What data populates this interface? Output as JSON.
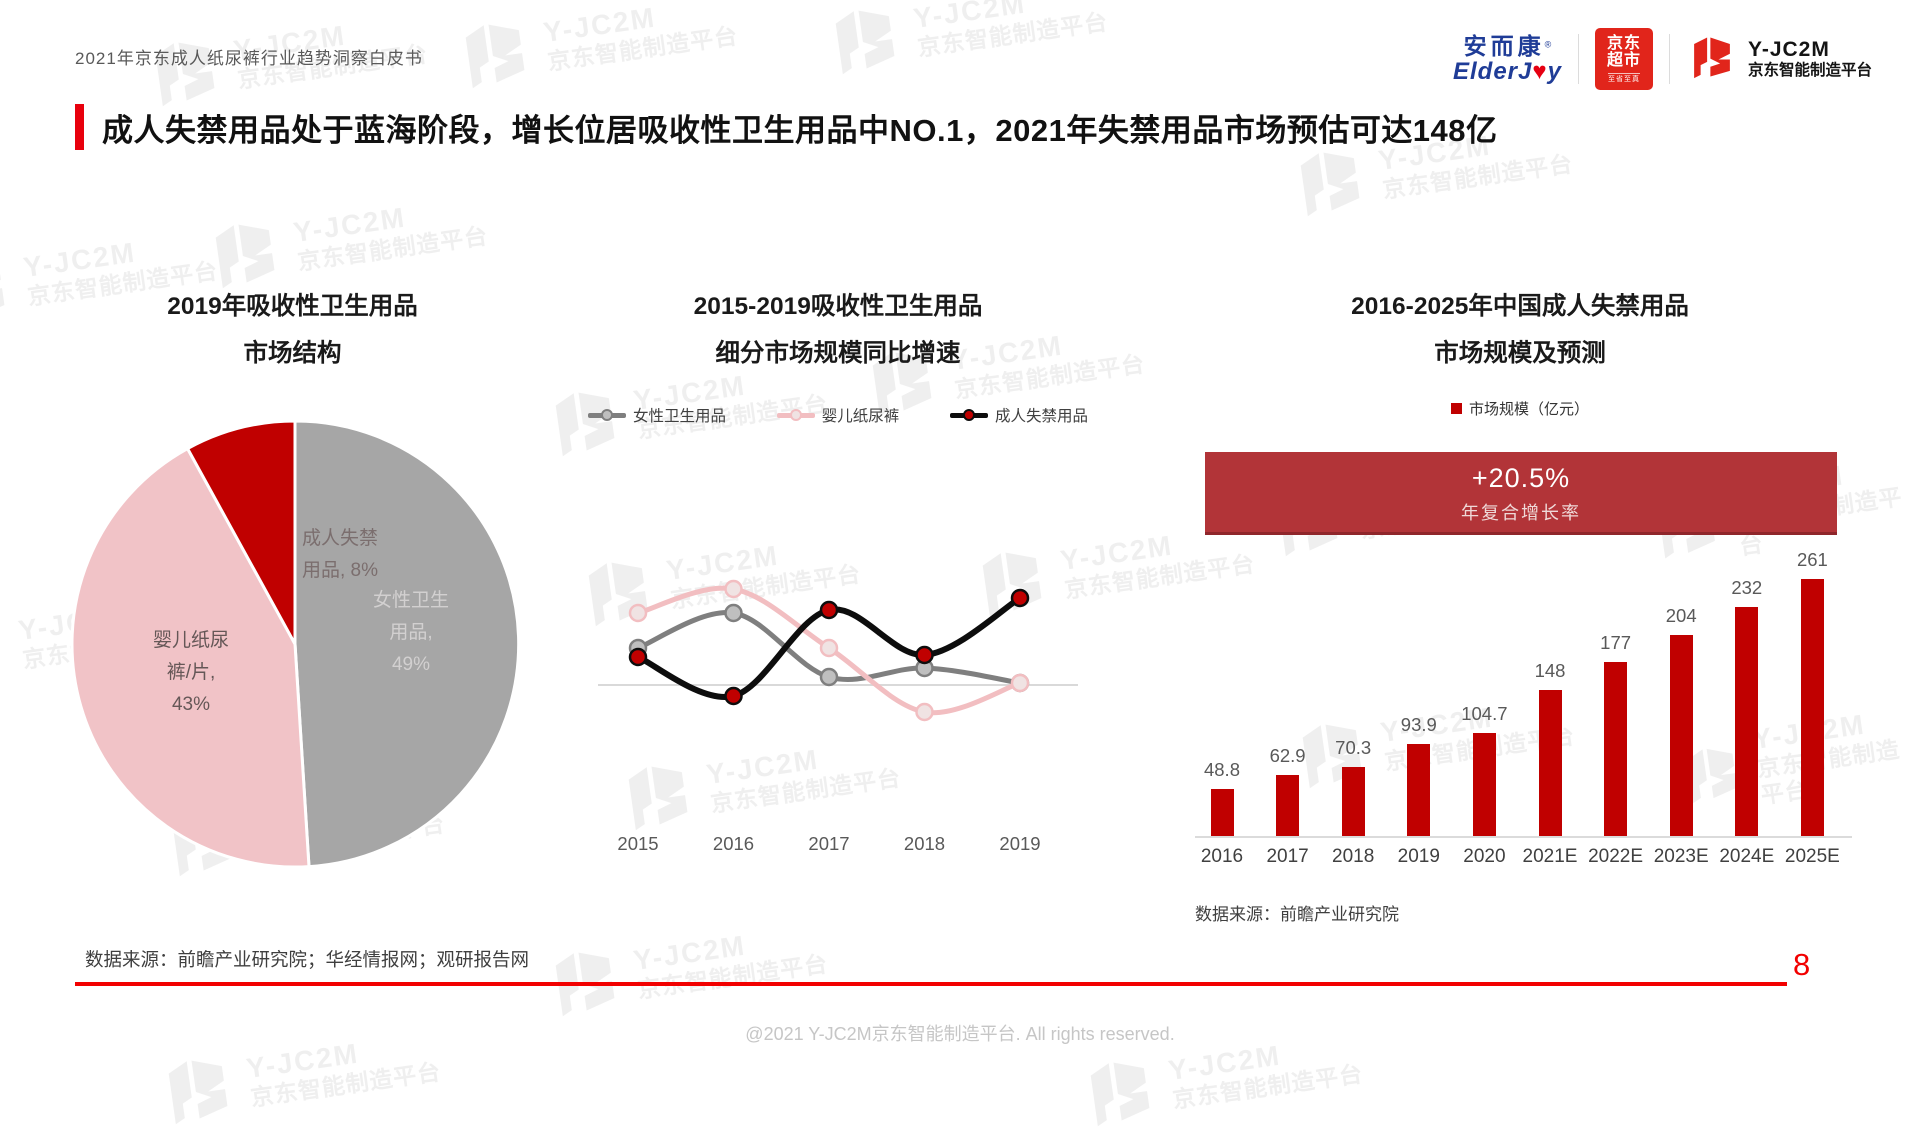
{
  "header": {
    "doc_title": "2021年京东成人纸尿裤行业趋势洞察白皮书",
    "logos": {
      "elderjoy": {
        "cn": "安而康",
        "reg": "®",
        "en_pre": "ElderJ",
        "en_heart": "♥",
        "en_post": "y"
      },
      "jd_market": {
        "line1": "京东",
        "line2": "超市",
        "slogan": "至省至真"
      },
      "yjc2m": {
        "line1": "Y-JC2M",
        "line2": "京东智能制造平台"
      }
    }
  },
  "headline": "成人失禁用品处于蓝海阶段，增长位居吸收性卫生用品中NO.1，2021年失禁用品市场预估可达148亿",
  "watermark": {
    "line1": "Y-JC2M",
    "line2": "京东智能制造平台"
  },
  "footer": {
    "source_left": "数据来源：前瞻产业研究院；华经情报网；观研报告网",
    "copyright": "@2021 Y-JC2M京东智能制造平台. All rights reserved.",
    "page_number": "8"
  },
  "chart_data": [
    {
      "type": "pie",
      "title_line1": "2019年吸收性卫生用品",
      "title_line2": "市场结构",
      "slices": [
        {
          "label": "女性卫生用品",
          "value": 49,
          "color": "#A6A6A6"
        },
        {
          "label": "婴儿纸尿裤/片",
          "value": 43,
          "color": "#F1C3C7"
        },
        {
          "label": "成人失禁用品",
          "value": 8,
          "color": "#C00000"
        }
      ],
      "slice_labels": {
        "gray": {
          "l1": "女性卫生",
          "l2": "用品,",
          "l3": "49%"
        },
        "pink": {
          "l1": "婴儿纸尿",
          "l2": "裤/片,",
          "l3": "43%"
        },
        "red": {
          "l1": "成人失禁",
          "l2": "用品, 8%"
        }
      }
    },
    {
      "type": "line",
      "title_line1": "2015-2019吸收性卫生用品",
      "title_line2": "细分市场规模同比增速",
      "x": [
        "2015",
        "2016",
        "2017",
        "2018",
        "2019"
      ],
      "series": [
        {
          "name": "女性卫生用品",
          "color": "#7F7F7F",
          "marker_fill": "#BFBFBF",
          "values": [
            3.7,
            7.2,
            0.8,
            1.7,
            0.2
          ]
        },
        {
          "name": "婴儿纸尿裤",
          "color": "#F2BEC1",
          "marker_fill": "#F0E3E3",
          "values": [
            7.2,
            9.6,
            3.7,
            -2.7,
            0.2
          ]
        },
        {
          "name": "成人失禁用品",
          "color": "#0D0D0D",
          "marker_fill": "#C00000",
          "values": [
            2.8,
            -1.1,
            7.5,
            3.0,
            8.7
          ]
        }
      ],
      "value_note": "values estimated from plot (growth rate, no numeric axis shown)"
    },
    {
      "type": "bar",
      "title_line1": "2016-2025年中国成人失禁用品",
      "title_line2": "市场规模及预测",
      "legend": "市场规模（亿元）",
      "banner_line1": "+20.5%",
      "banner_line2": "年复合增长率",
      "categories": [
        "2016",
        "2017",
        "2018",
        "2019",
        "2020",
        "2021E",
        "2022E",
        "2023E",
        "2024E",
        "2025E"
      ],
      "values": [
        48.8,
        62.9,
        70.3,
        93.9,
        104.7,
        148,
        177,
        204,
        232,
        261
      ],
      "bar_color": "#C00000",
      "source": "数据来源：前瞻产业研究院"
    }
  ]
}
